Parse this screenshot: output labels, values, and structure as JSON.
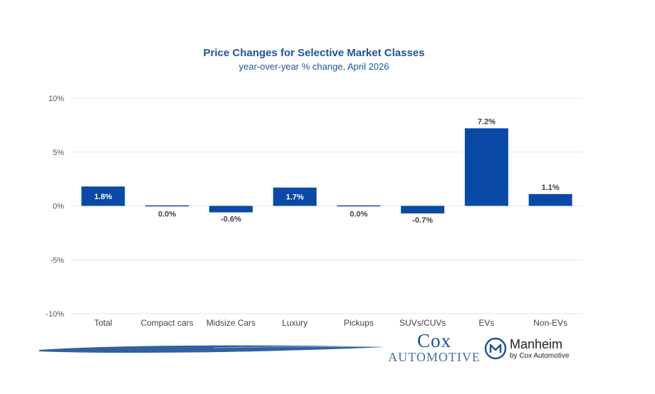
{
  "chart_data": {
    "type": "bar",
    "title": "Price Changes for Selective Market Classes",
    "subtitle": "year-over-year % change, April 2026",
    "categories": [
      "Total",
      "Compact cars",
      "Midsize Cars",
      "Luxury",
      "Pickups",
      "SUVs/CUVs",
      "EVs",
      "Non-EVs"
    ],
    "values": [
      1.8,
      0.0,
      -0.6,
      1.7,
      0.0,
      -0.7,
      7.2,
      1.1
    ],
    "data_labels": [
      "1.8%",
      "0.0%",
      "-0.6%",
      "1.7%",
      "0.0%",
      "-0.7%",
      "7.2%",
      "1.1%"
    ],
    "ylim": [
      -10,
      10
    ],
    "yticks": [
      10,
      5,
      0,
      -5,
      -10
    ],
    "ytick_labels": [
      "10%",
      "5%",
      "0%",
      "-5%",
      "-10%"
    ],
    "grid": true,
    "bar_color": "#0b49a6",
    "grid_color": "#e6e6e6"
  },
  "branding": {
    "cox_top": "Cox",
    "cox_bottom": "AUTOMOTIVE",
    "manheim_name": "Manheim",
    "manheim_sub": "by Cox Automotive",
    "brand_color": "#1f5497"
  }
}
